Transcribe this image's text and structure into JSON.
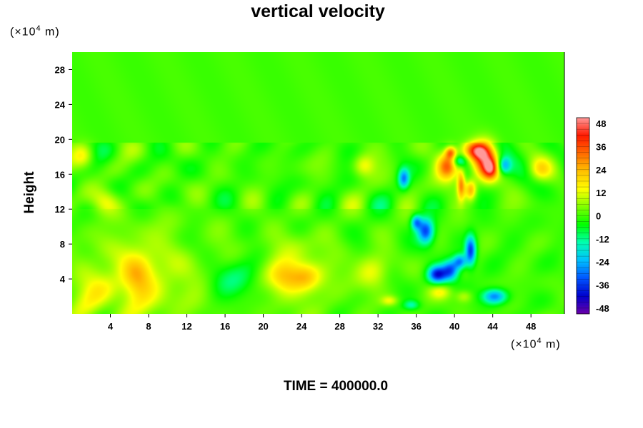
{
  "chart_data": {
    "type": "heatmap",
    "title": "vertical velocity",
    "ylabel": "Height",
    "xlabel": "",
    "y_unit": {
      "prefix": "(×10",
      "exp": "4",
      "suffix": " m)"
    },
    "x_unit": {
      "prefix": "(×10",
      "exp": "4",
      "suffix": " m)"
    },
    "xlim": [
      0,
      51.5
    ],
    "ylim": [
      0,
      30
    ],
    "x_ticks": [
      4,
      8,
      12,
      16,
      20,
      24,
      28,
      32,
      36,
      40,
      44,
      48
    ],
    "y_ticks": [
      4,
      8,
      12,
      16,
      20,
      24,
      28
    ],
    "colorbar": {
      "range": [
        -51,
        51
      ],
      "ticks": [
        48,
        36,
        24,
        12,
        0,
        -12,
        -24,
        -36,
        -48
      ],
      "stops": [
        "#6a00a8",
        "#0000cc",
        "#0055ff",
        "#00c0ff",
        "#00ffb0",
        "#00ff00",
        "#80ff00",
        "#ffff00",
        "#ffc000",
        "#ff6a00",
        "#ff1a00",
        "#ff9999"
      ]
    },
    "background_value": 0,
    "features": [
      {
        "x": 7,
        "y": 4,
        "sx": 4.5,
        "sy": 4,
        "value": 11
      },
      {
        "x": 6.8,
        "y": 4,
        "sx": 1.1,
        "sy": 1.8,
        "value": 14
      },
      {
        "x": 23,
        "y": 4.5,
        "sx": 3.5,
        "sy": 3,
        "value": 10
      },
      {
        "x": 22.3,
        "y": 4.3,
        "sx": 1.3,
        "sy": 1.2,
        "value": 14
      },
      {
        "x": 24.5,
        "y": 4.3,
        "sx": 1,
        "sy": 1,
        "value": 11
      },
      {
        "x": 17.7,
        "y": 4,
        "sx": 2,
        "sy": 1.8,
        "value": -13
      },
      {
        "x": 31.5,
        "y": 4.8,
        "sx": 1.2,
        "sy": 1.4,
        "value": 12
      },
      {
        "x": 1.5,
        "y": 2,
        "sx": 1.5,
        "sy": 1.5,
        "value": 8
      },
      {
        "x": 3.5,
        "y": 13,
        "sx": 1,
        "sy": 1,
        "value": 10
      },
      {
        "x": 1.2,
        "y": 18,
        "sx": 0.8,
        "sy": 1,
        "value": 12
      },
      {
        "x": 30.5,
        "y": 17,
        "sx": 0.8,
        "sy": 0.9,
        "value": 14
      },
      {
        "x": 49,
        "y": 16.5,
        "sx": 0.8,
        "sy": 0.9,
        "value": 13
      },
      {
        "x": 43.2,
        "y": 17.5,
        "sx": 0.9,
        "sy": 1.5,
        "value": 36
      },
      {
        "x": 42.3,
        "y": 18.7,
        "sx": 0.9,
        "sy": 0.7,
        "value": 28
      },
      {
        "x": 43.8,
        "y": 16.6,
        "sx": 0.5,
        "sy": 0.8,
        "value": 22
      },
      {
        "x": 39.3,
        "y": 17,
        "sx": 0.8,
        "sy": 1.1,
        "value": 34
      },
      {
        "x": 39.6,
        "y": 18.5,
        "sx": 0.4,
        "sy": 0.5,
        "value": 26
      },
      {
        "x": 40.7,
        "y": 14.8,
        "sx": 0.3,
        "sy": 1.2,
        "value": 28
      },
      {
        "x": 41.7,
        "y": 14.2,
        "sx": 0.4,
        "sy": 0.8,
        "value": 24
      },
      {
        "x": 40.5,
        "y": 17.5,
        "sx": 0.5,
        "sy": 0.5,
        "value": -20
      },
      {
        "x": 45.2,
        "y": 17,
        "sx": 0.5,
        "sy": 0.7,
        "value": -24
      },
      {
        "x": 34.7,
        "y": 15.5,
        "sx": 0.4,
        "sy": 0.8,
        "value": -26
      },
      {
        "x": 37,
        "y": 9.5,
        "sx": 0.6,
        "sy": 1,
        "value": -34
      },
      {
        "x": 36,
        "y": 10.5,
        "sx": 0.4,
        "sy": 0.6,
        "value": -26
      },
      {
        "x": 41.7,
        "y": 7.2,
        "sx": 0.4,
        "sy": 1.2,
        "value": -36
      },
      {
        "x": 38.2,
        "y": 4.5,
        "sx": 0.7,
        "sy": 0.7,
        "value": -38
      },
      {
        "x": 39.6,
        "y": 5,
        "sx": 0.6,
        "sy": 0.8,
        "value": -30
      },
      {
        "x": 40.6,
        "y": 6,
        "sx": 0.5,
        "sy": 0.6,
        "value": -28
      },
      {
        "x": 38.5,
        "y": 2.5,
        "sx": 0.8,
        "sy": 0.6,
        "value": 12
      },
      {
        "x": 44.2,
        "y": 2,
        "sx": 0.9,
        "sy": 0.6,
        "value": -28
      },
      {
        "x": 41,
        "y": 2,
        "sx": 0.6,
        "sy": 0.5,
        "value": 10
      },
      {
        "x": 35.5,
        "y": 1,
        "sx": 0.6,
        "sy": 0.4,
        "value": -14
      },
      {
        "x": 33.2,
        "y": 1.5,
        "sx": 0.6,
        "sy": 0.4,
        "value": 12
      }
    ]
  },
  "footer": {
    "time_label": "TIME = 400000.0"
  }
}
